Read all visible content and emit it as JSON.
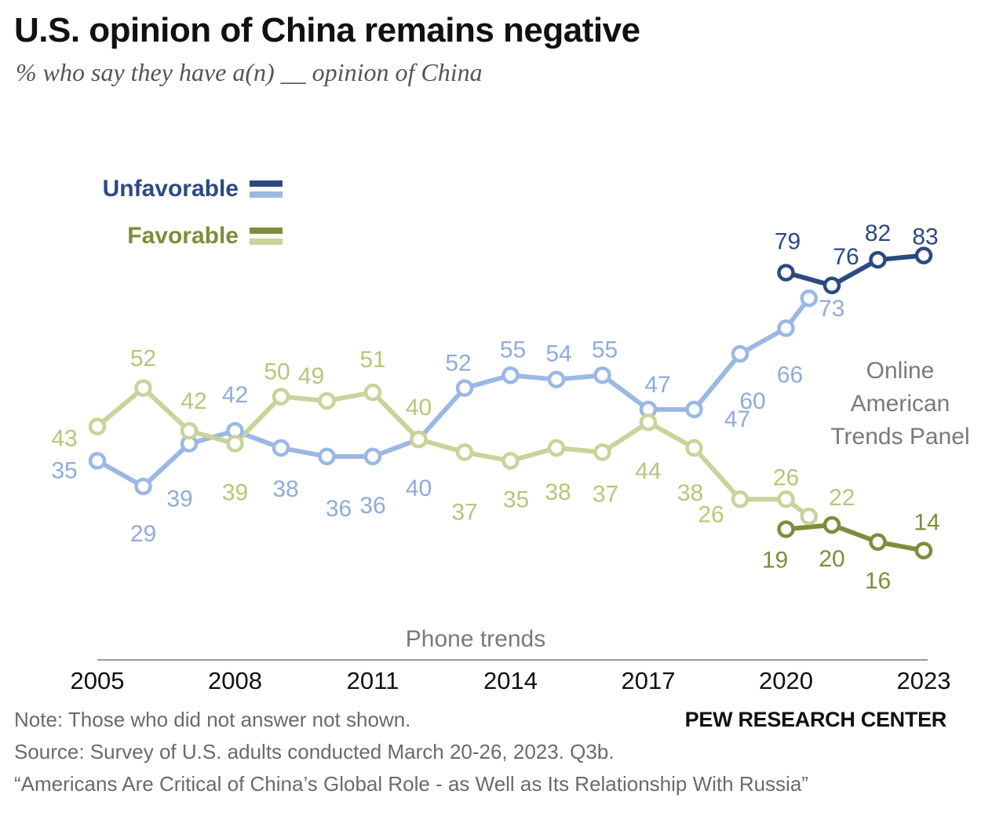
{
  "title": "U.S. opinion of China remains negative",
  "subtitle": "% who say they have a(n) __ opinion of China",
  "note": "Note: Those who did not answer not shown.",
  "source": "Source: Survey of U.S. adults conducted March 20-26, 2023. Q3b.",
  "report": "“Americans Are Critical of China’s Global Role - as Well as Its Relationship With Russia”",
  "org": "PEW RESEARCH CENTER",
  "chart_data": {
    "type": "line",
    "x_ticks": [
      "2005",
      "2008",
      "2011",
      "2014",
      "2017",
      "2020",
      "2023"
    ],
    "annotations": {
      "phone": "Phone trends",
      "online": [
        "Online",
        "American",
        "Trends Panel"
      ]
    },
    "legend": [
      {
        "label": "Unfavorable",
        "color": "#2b4a80",
        "color_light": "#9bb8e3"
      },
      {
        "label": "Favorable",
        "color": "#7f8c3b",
        "color_light": "#c9d39a"
      }
    ],
    "series": [
      {
        "name": "Unfavorable",
        "mode": "Phone trends",
        "color": "#9bb8e3",
        "label_color": "#8fabdb",
        "points": [
          {
            "x": 2005,
            "y": 35
          },
          {
            "x": 2006,
            "y": 29
          },
          {
            "x": 2007,
            "y": 39
          },
          {
            "x": 2008,
            "y": 42
          },
          {
            "x": 2009,
            "y": 38
          },
          {
            "x": 2010,
            "y": 36
          },
          {
            "x": 2011,
            "y": 36
          },
          {
            "x": 2012,
            "y": 40
          },
          {
            "x": 2013,
            "y": 52
          },
          {
            "x": 2014,
            "y": 55
          },
          {
            "x": 2015,
            "y": 54
          },
          {
            "x": 2016,
            "y": 55
          },
          {
            "x": 2017,
            "y": 47
          },
          {
            "x": 2018,
            "y": 47
          },
          {
            "x": 2019,
            "y": 60
          },
          {
            "x": 2020,
            "y": 66
          },
          {
            "x": 2020.5,
            "y": 73
          }
        ]
      },
      {
        "name": "Favorable",
        "mode": "Phone trends",
        "color": "#c9d39a",
        "label_color": "#b9c47c",
        "points": [
          {
            "x": 2005,
            "y": 43
          },
          {
            "x": 2006,
            "y": 52
          },
          {
            "x": 2007,
            "y": 42
          },
          {
            "x": 2008,
            "y": 39
          },
          {
            "x": 2009,
            "y": 50
          },
          {
            "x": 2010,
            "y": 49
          },
          {
            "x": 2011,
            "y": 51
          },
          {
            "x": 2012,
            "y": 40
          },
          {
            "x": 2013,
            "y": 37
          },
          {
            "x": 2014,
            "y": 35
          },
          {
            "x": 2015,
            "y": 38
          },
          {
            "x": 2016,
            "y": 37
          },
          {
            "x": 2017,
            "y": 44
          },
          {
            "x": 2018,
            "y": 38
          },
          {
            "x": 2019,
            "y": 26
          },
          {
            "x": 2020,
            "y": 26
          },
          {
            "x": 2020.5,
            "y": 22
          }
        ]
      },
      {
        "name": "Unfavorable",
        "mode": "Online American Trends Panel",
        "color": "#2b4a80",
        "label_color": "#2b4a80",
        "points": [
          {
            "x": 2020,
            "y": 79
          },
          {
            "x": 2021,
            "y": 76
          },
          {
            "x": 2022,
            "y": 82
          },
          {
            "x": 2023,
            "y": 83
          }
        ]
      },
      {
        "name": "Favorable",
        "mode": "Online American Trends Panel",
        "color": "#7f8c3b",
        "label_color": "#7f8c3b",
        "points": [
          {
            "x": 2020,
            "y": 19
          },
          {
            "x": 2021,
            "y": 20
          },
          {
            "x": 2022,
            "y": 16
          },
          {
            "x": 2023,
            "y": 14
          }
        ]
      }
    ]
  }
}
